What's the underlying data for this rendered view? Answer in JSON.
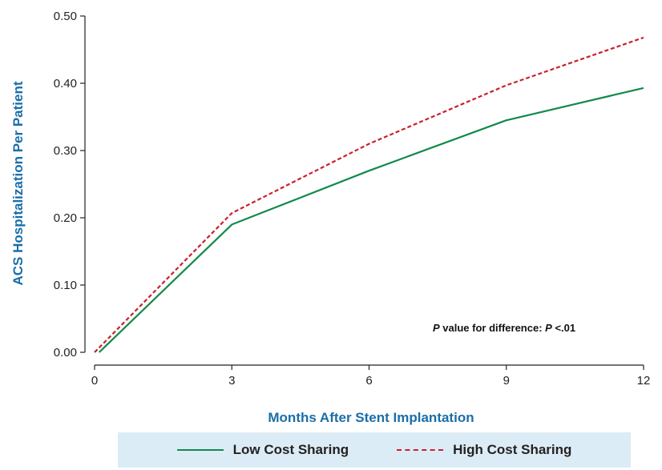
{
  "chart_data": {
    "type": "line",
    "title": "",
    "xlabel": "Months After Stent Implantation",
    "ylabel": "ACS Hospitalization Per Patient",
    "xlim": [
      0,
      12
    ],
    "ylim": [
      0,
      0.5
    ],
    "x_ticks": [
      "0",
      "3",
      "6",
      "9",
      "12"
    ],
    "y_ticks": [
      "0.00",
      "0.10",
      "0.20",
      "0.30",
      "0.40",
      "0.50"
    ],
    "grid": false,
    "legend_position": "bottom",
    "annotation": {
      "p_label": "P",
      "mid_text": " value for difference: ",
      "p_label2": "P",
      "value_text": " <.01"
    },
    "series": [
      {
        "name": "Low Cost Sharing",
        "color": "#138a4a",
        "style": "solid",
        "x": [
          0.1,
          3,
          6,
          9,
          12
        ],
        "y": [
          0.0,
          0.19,
          0.27,
          0.345,
          0.393
        ]
      },
      {
        "name": "High Cost Sharing",
        "color": "#c8212e",
        "style": "dashed",
        "x": [
          0,
          3,
          6,
          9,
          12
        ],
        "y": [
          0.0,
          0.207,
          0.31,
          0.397,
          0.468
        ]
      }
    ]
  }
}
